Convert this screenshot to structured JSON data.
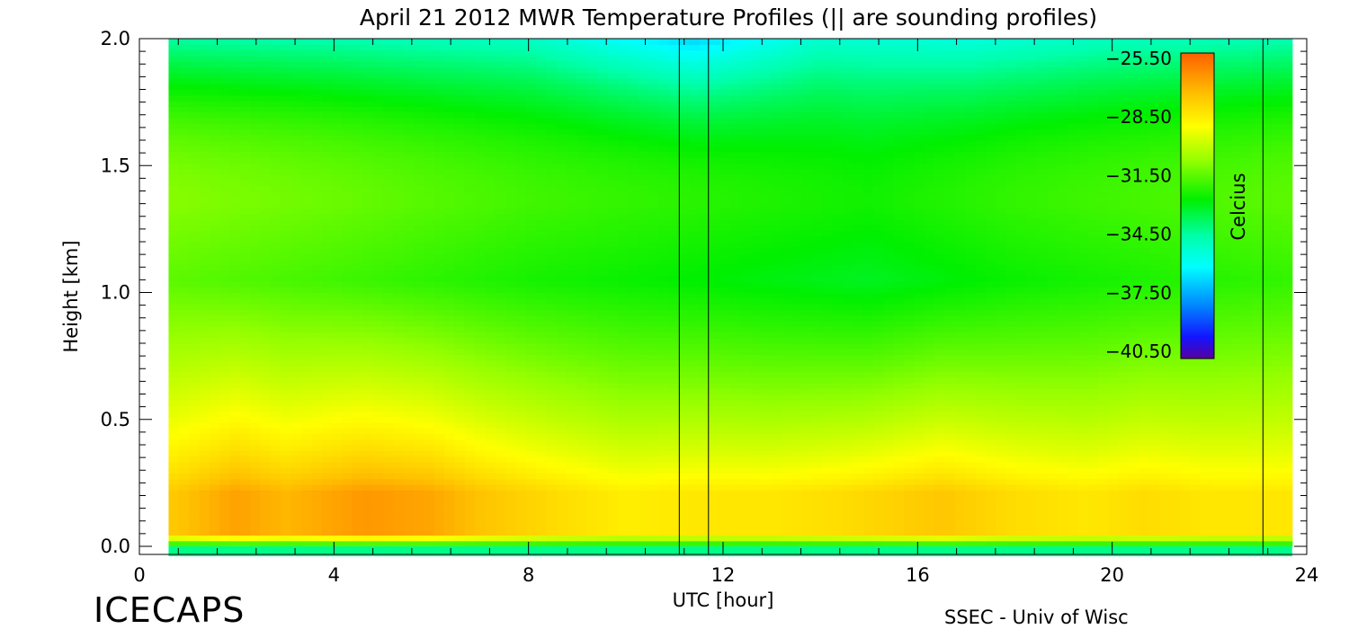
{
  "chart_data": {
    "type": "heatmap",
    "title": "April 21 2012 MWR Temperature Profiles (|| are sounding profiles)",
    "xlabel": "UTC [hour]",
    "ylabel": "Height [km]",
    "xlim": [
      0,
      24
    ],
    "ylim": [
      0.0,
      2.0
    ],
    "x_ticks": [
      "0",
      "4",
      "8",
      "12",
      "16",
      "20",
      "24"
    ],
    "y_ticks": [
      "0.0",
      "0.5",
      "1.0",
      "1.5",
      "2.0"
    ],
    "data_x_range": [
      0.6,
      23.7
    ],
    "colorbar": {
      "label": "Celcius",
      "ticks": [
        "-25.50",
        "-28.50",
        "-31.50",
        "-34.50",
        "-37.50",
        "-40.50"
      ],
      "range": [
        -41.5,
        -25.0
      ]
    },
    "sounding_times": [
      11.1,
      11.7,
      23.1
    ],
    "surface_temp": -33.0,
    "warm_layer_temp": [
      {
        "x": 0.6,
        "value": -27.5
      },
      {
        "x": 2.0,
        "value": -26.5
      },
      {
        "x": 3.0,
        "value": -27.0
      },
      {
        "x": 4.6,
        "value": -26.3
      },
      {
        "x": 6.0,
        "value": -26.6
      },
      {
        "x": 7.0,
        "value": -27.3
      },
      {
        "x": 8.6,
        "value": -28.0
      },
      {
        "x": 10.0,
        "value": -28.5
      },
      {
        "x": 11.5,
        "value": -28.3
      },
      {
        "x": 13.0,
        "value": -28.3
      },
      {
        "x": 14.5,
        "value": -28.0
      },
      {
        "x": 16.5,
        "value": -27.4
      },
      {
        "x": 18.0,
        "value": -28.0
      },
      {
        "x": 19.5,
        "value": -28.3
      },
      {
        "x": 20.7,
        "value": -28.0
      },
      {
        "x": 22.0,
        "value": -28.3
      },
      {
        "x": 23.7,
        "value": -28.3
      }
    ],
    "top_temp": [
      {
        "x": 0.6,
        "value": -34.8
      },
      {
        "x": 4.0,
        "value": -35.0
      },
      {
        "x": 8.0,
        "value": -35.4
      },
      {
        "x": 11.4,
        "value": -37.3
      },
      {
        "x": 14.0,
        "value": -35.6
      },
      {
        "x": 17.0,
        "value": -35.9
      },
      {
        "x": 20.0,
        "value": -35.3
      },
      {
        "x": 23.7,
        "value": -35.0
      }
    ],
    "cold_core_temp": [
      {
        "x": 0.6,
        "value": -31.6
      },
      {
        "x": 4.0,
        "value": -32.0
      },
      {
        "x": 8.0,
        "value": -32.6
      },
      {
        "x": 12.0,
        "value": -33.0
      },
      {
        "x": 15.0,
        "value": -33.3
      },
      {
        "x": 18.0,
        "value": -32.8
      },
      {
        "x": 23.7,
        "value": -32.2
      }
    ]
  },
  "footer": {
    "left": "ICECAPS",
    "right": "SSEC - Univ of Wisc"
  },
  "colors": {
    "background": "#ffffff",
    "axis": "#000000"
  }
}
